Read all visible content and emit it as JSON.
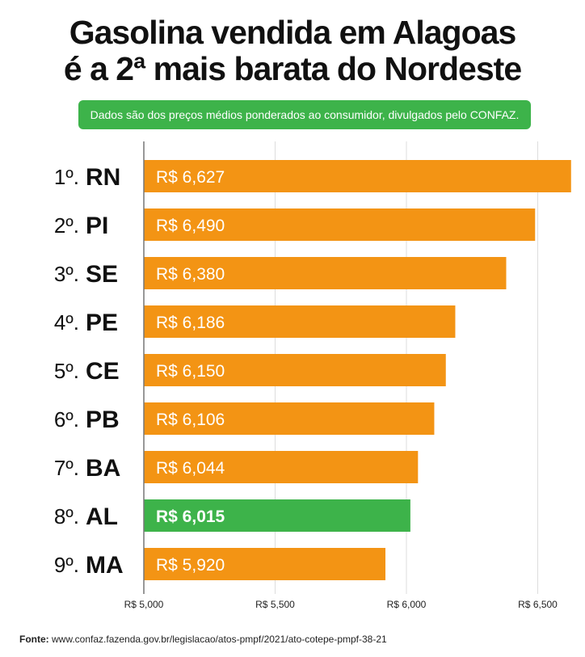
{
  "title_line1": "Gasolina vendida em Alagoas",
  "title_line2": "é a 2ª mais barata do Nordeste",
  "subtitle": "Dados são dos preços médios ponderados ao consumidor, divulgados pelo CONFAZ.",
  "source_label": "Fonte:",
  "source_url": "www.confaz.fazenda.gov.br/legislacao/atos-pmpf/2021/ato-cotepe-pmpf-38-21",
  "colors": {
    "bar": "#f39414",
    "highlight": "#3db34a"
  },
  "chart_data": {
    "type": "bar",
    "orientation": "horizontal",
    "categories": [
      "RN",
      "PI",
      "SE",
      "PE",
      "CE",
      "PB",
      "BA",
      "AL",
      "MA"
    ],
    "ranks": [
      "1º.",
      "2º.",
      "3º.",
      "4º.",
      "5º.",
      "6º.",
      "7º.",
      "8º.",
      "9º."
    ],
    "values": [
      6.627,
      6.49,
      6.38,
      6.186,
      6.15,
      6.106,
      6.044,
      6.015,
      5.92
    ],
    "data_labels": [
      "R$ 6,627",
      "R$ 6,490",
      "R$ 6,380",
      "R$ 6,186",
      "R$ 6,150",
      "R$ 6,106",
      "R$ 6,044",
      "R$ 6,015",
      "R$ 5,920"
    ],
    "highlight": "AL",
    "xlim": [
      5.0,
      6.627
    ],
    "xticks": [
      5.0,
      5.5,
      6.0,
      6.5
    ],
    "xtick_labels": [
      "R$ 5,000",
      "R$ 5,500",
      "R$ 6,000",
      "R$ 6,500"
    ],
    "grid": true
  }
}
